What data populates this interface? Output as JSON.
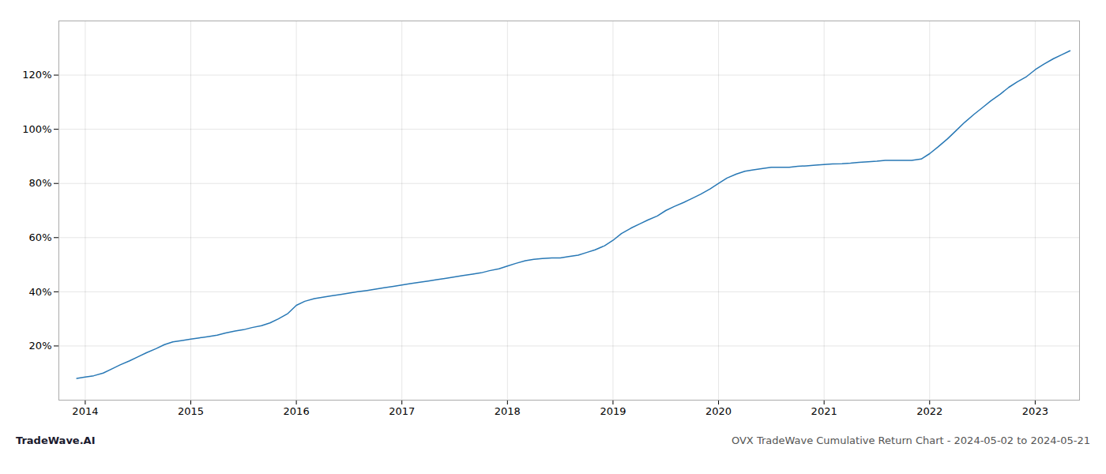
{
  "chart_data": {
    "type": "line",
    "title": "OVX TradeWave Cumulative Return Chart - 2024-05-02 to 2024-05-21",
    "annotations": [
      "TradeWave.AI"
    ],
    "color": "#2878b5",
    "grid": true,
    "x": [
      2013.92,
      2014.0,
      2014.08,
      2014.17,
      2014.25,
      2014.33,
      2014.42,
      2014.5,
      2014.58,
      2014.67,
      2014.75,
      2014.83,
      2014.92,
      2015.0,
      2015.08,
      2015.17,
      2015.25,
      2015.33,
      2015.42,
      2015.5,
      2015.58,
      2015.67,
      2015.75,
      2015.83,
      2015.92,
      2016.0,
      2016.08,
      2016.17,
      2016.25,
      2016.33,
      2016.42,
      2016.5,
      2016.58,
      2016.67,
      2016.75,
      2016.83,
      2016.92,
      2017.0,
      2017.08,
      2017.17,
      2017.25,
      2017.33,
      2017.42,
      2017.5,
      2017.58,
      2017.67,
      2017.75,
      2017.83,
      2017.92,
      2018.0,
      2018.08,
      2018.17,
      2018.25,
      2018.33,
      2018.42,
      2018.5,
      2018.58,
      2018.67,
      2018.75,
      2018.83,
      2018.92,
      2019.0,
      2019.08,
      2019.17,
      2019.25,
      2019.33,
      2019.42,
      2019.5,
      2019.58,
      2019.67,
      2019.75,
      2019.83,
      2019.92,
      2020.0,
      2020.08,
      2020.17,
      2020.25,
      2020.33,
      2020.42,
      2020.5,
      2020.58,
      2020.67,
      2020.75,
      2020.83,
      2020.92,
      2021.0,
      2021.08,
      2021.17,
      2021.25,
      2021.33,
      2021.42,
      2021.5,
      2021.58,
      2021.67,
      2021.75,
      2021.83,
      2021.92,
      2022.0,
      2022.08,
      2022.17,
      2022.25,
      2022.33,
      2022.42,
      2022.5,
      2022.58,
      2022.67,
      2022.75,
      2022.83,
      2022.92,
      2023.0,
      2023.08,
      2023.17,
      2023.25,
      2023.33
    ],
    "values": [
      8.0,
      8.5,
      9.0,
      10.0,
      11.5,
      13.0,
      14.5,
      16.0,
      17.5,
      19.0,
      20.5,
      21.5,
      22.0,
      22.5,
      23.0,
      23.5,
      24.0,
      24.8,
      25.5,
      26.0,
      26.8,
      27.5,
      28.5,
      30.0,
      32.0,
      35.0,
      36.5,
      37.5,
      38.0,
      38.5,
      39.0,
      39.5,
      40.0,
      40.5,
      41.0,
      41.5,
      42.0,
      42.5,
      43.0,
      43.5,
      44.0,
      44.5,
      45.0,
      45.5,
      46.0,
      46.5,
      47.0,
      47.8,
      48.5,
      49.5,
      50.5,
      51.5,
      52.0,
      52.3,
      52.5,
      52.5,
      53.0,
      53.5,
      54.5,
      55.5,
      57.0,
      59.0,
      61.5,
      63.5,
      65.0,
      66.5,
      68.0,
      70.0,
      71.5,
      73.0,
      74.5,
      76.0,
      78.0,
      80.0,
      82.0,
      83.5,
      84.5,
      85.0,
      85.5,
      86.0,
      86.0,
      86.0,
      86.3,
      86.5,
      86.8,
      87.0,
      87.2,
      87.3,
      87.5,
      87.8,
      88.0,
      88.2,
      88.5,
      88.5,
      88.5,
      88.5,
      89.0,
      91.0,
      93.5,
      96.5,
      99.5,
      102.5,
      105.5,
      108.0,
      110.5,
      113.0,
      115.5,
      117.5,
      119.5,
      122.0,
      124.0,
      126.0,
      127.5,
      129.0
    ],
    "xlim": [
      2013.75,
      2023.42
    ],
    "ylim": [
      0,
      140
    ],
    "xticks": [
      2014,
      2015,
      2016,
      2017,
      2018,
      2019,
      2020,
      2021,
      2022,
      2023
    ],
    "yticks": [
      {
        "value": 20,
        "label": "20%"
      },
      {
        "value": 40,
        "label": "40%"
      },
      {
        "value": 60,
        "label": "60%"
      },
      {
        "value": 80,
        "label": "80%"
      },
      {
        "value": 100,
        "label": "100%"
      },
      {
        "value": 120,
        "label": "120%"
      }
    ]
  }
}
